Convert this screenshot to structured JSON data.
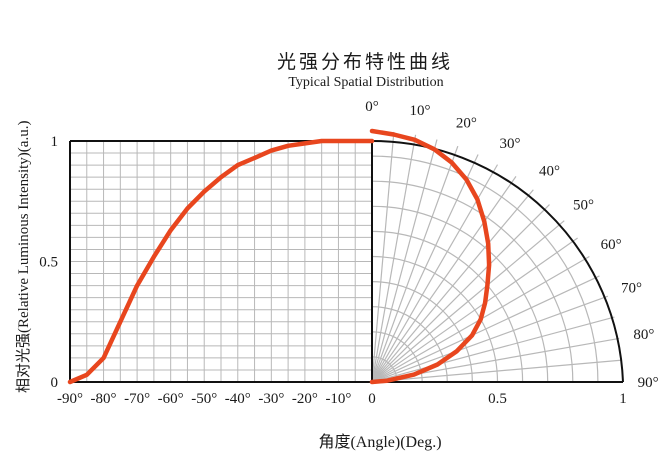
{
  "title": "光强分布特性曲线",
  "subtitle": "Typical Spatial Distribution",
  "xlabel": "角度(Angle)(Deg.)",
  "ylabel": "相对光强(Relative Luminous Intensity)(a.u.)",
  "chart_data": {
    "type": "line",
    "title": "光强分布特性曲线",
    "subtitle": "Typical Spatial Distribution",
    "xlabel": "角度(Angle)(Deg.)",
    "ylabel": "相对光强(Relative Luminous Intensity)(a.u.)",
    "cartesian": {
      "xlim": [
        -90,
        0
      ],
      "ylim": [
        0,
        1
      ],
      "x_ticks": [
        -90,
        -80,
        -70,
        -60,
        -50,
        -40,
        -30,
        -20,
        -10,
        0
      ],
      "x_tick_labels": [
        "-90°",
        "-80°",
        "-70°",
        "-60°",
        "-50°",
        "-40°",
        "-30°",
        "-20°",
        "-10°",
        "0"
      ],
      "y_ticks": [
        0,
        0.5,
        1
      ],
      "y_tick_labels": [
        "0",
        "0.5",
        "1"
      ],
      "grid": true,
      "x": [
        -90,
        -85,
        -80,
        -75,
        -70,
        -65,
        -60,
        -55,
        -50,
        -45,
        -40,
        -35,
        -30,
        -25,
        -20,
        -15,
        -10,
        -5,
        0
      ],
      "y": [
        0.0,
        0.03,
        0.1,
        0.25,
        0.4,
        0.52,
        0.63,
        0.72,
        0.79,
        0.85,
        0.9,
        0.93,
        0.96,
        0.98,
        0.99,
        1.0,
        1.0,
        1.0,
        1.0
      ]
    },
    "polar": {
      "angle_range": [
        0,
        90
      ],
      "radius_ticks": [
        0.5,
        1
      ],
      "radius_tick_labels": [
        "0.5",
        "1"
      ],
      "angle_ticks": [
        0,
        10,
        20,
        30,
        40,
        50,
        60,
        70,
        80,
        90
      ],
      "angle_tick_labels": [
        "0°",
        "10°",
        "20°",
        "30°",
        "40°",
        "50°",
        "60°",
        "70°",
        "80°",
        "90°"
      ],
      "grid": true,
      "angles": [
        0,
        5,
        10,
        15,
        20,
        25,
        30,
        35,
        40,
        45,
        50,
        55,
        60,
        65,
        70,
        75,
        80,
        85,
        90
      ],
      "radii": [
        1.0,
        0.99,
        0.98,
        0.96,
        0.93,
        0.89,
        0.84,
        0.78,
        0.72,
        0.66,
        0.6,
        0.55,
        0.5,
        0.44,
        0.36,
        0.27,
        0.17,
        0.06,
        0.0
      ]
    },
    "colors": {
      "curve": "#e8461e",
      "grid": "#b8b8b8",
      "axis": "#111111"
    }
  }
}
